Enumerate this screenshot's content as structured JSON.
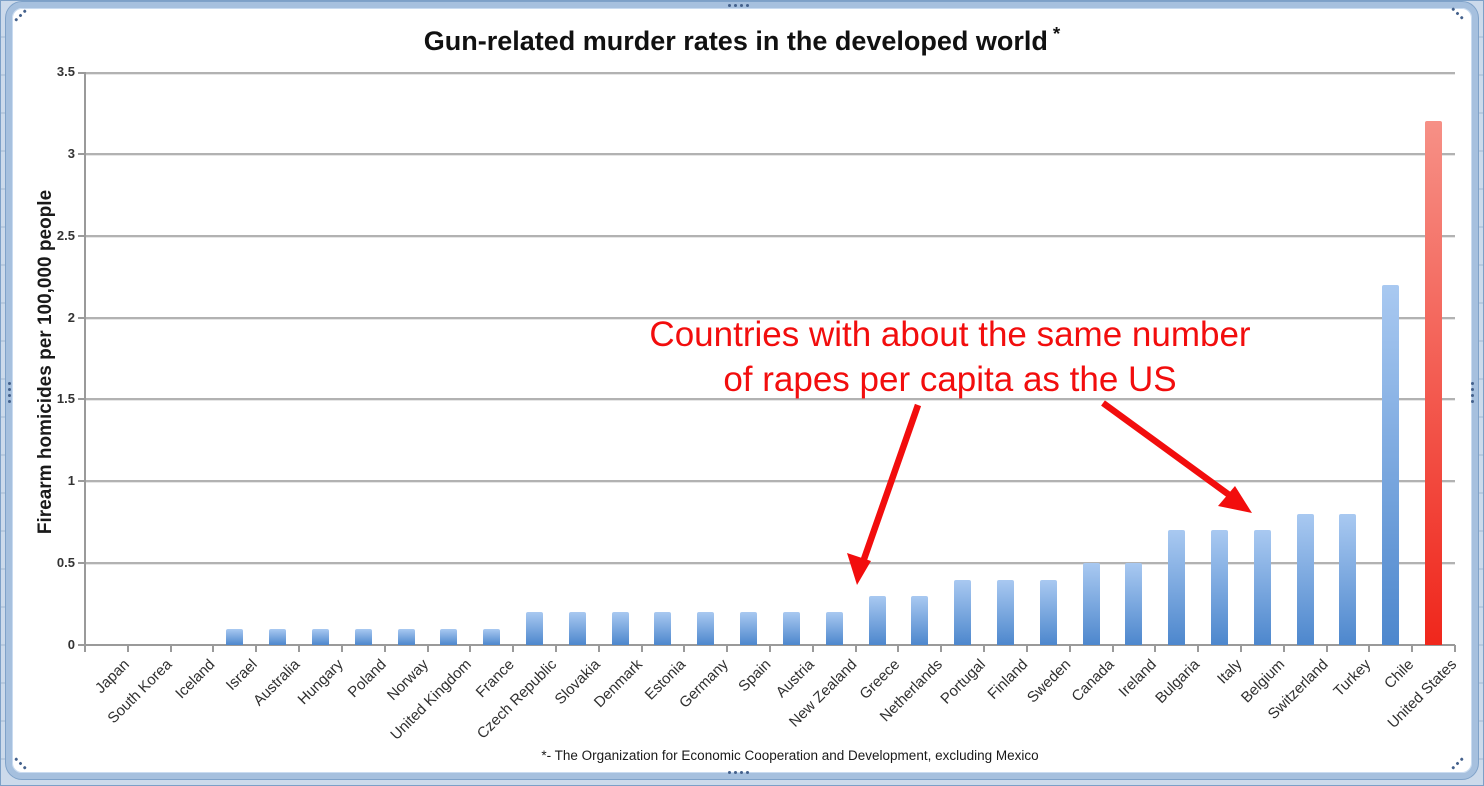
{
  "chart_data": {
    "type": "bar",
    "title": "Gun-related murder rates in the developed world",
    "title_note_marker": "*",
    "ylabel": "Firearm homicides per 100,000 people",
    "xlabel": "",
    "ylim": [
      0,
      3.5
    ],
    "yticks": [
      0,
      0.5,
      1,
      1.5,
      2,
      2.5,
      3,
      3.5
    ],
    "grid": true,
    "legend": false,
    "categories": [
      "Japan",
      "South Korea",
      "Iceland",
      "Israel",
      "Australia",
      "Hungary",
      "Poland",
      "Norway",
      "United Kingdom",
      "France",
      "Czech Republic",
      "Slovakia",
      "Denmark",
      "Estonia",
      "Germany",
      "Spain",
      "Austria",
      "New Zealand",
      "Greece",
      "Netherlands",
      "Portugal",
      "Finland",
      "Sweden",
      "Canada",
      "Ireland",
      "Bulgaria",
      "Italy",
      "Belgium",
      "Switzerland",
      "Turkey",
      "Chile",
      "United States"
    ],
    "values": [
      0,
      0,
      0,
      0.1,
      0.1,
      0.1,
      0.1,
      0.1,
      0.1,
      0.1,
      0.2,
      0.2,
      0.2,
      0.2,
      0.2,
      0.2,
      0.2,
      0.2,
      0.3,
      0.3,
      0.4,
      0.4,
      0.4,
      0.5,
      0.5,
      0.7,
      0.7,
      0.7,
      0.8,
      0.8,
      2.2,
      3.2
    ],
    "highlight_category": "United States",
    "footnote": "*- The Organization for Economic Cooperation and Development, excluding Mexico",
    "annotation": {
      "lines": [
        "Countries with about the same number",
        "of rapes per capita as the US"
      ],
      "arrow_targets": [
        "New Zealand",
        "Belgium"
      ]
    },
    "colors": {
      "bar_gradient_top": "#a9c9f1",
      "bar_gradient_bottom": "#4d87cd",
      "highlight_gradient_top": "#f69086",
      "highlight_gradient_bottom": "#f0271c",
      "annotation_red": "#f20d0d"
    }
  }
}
